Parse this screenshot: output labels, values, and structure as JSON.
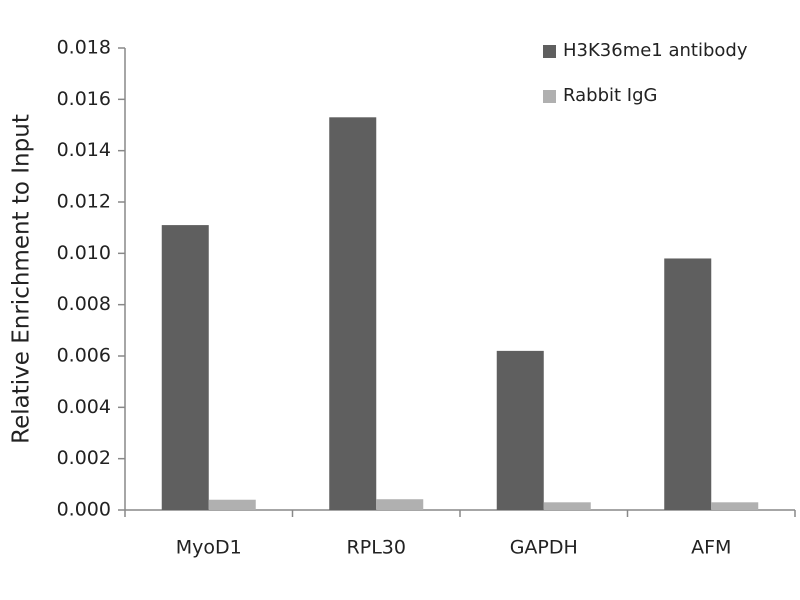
{
  "chart_data": {
    "type": "bar",
    "y_label": "Relative Enrichment to Input",
    "categories": [
      "MyoD1",
      "RPL30",
      "GAPDH",
      "AFM"
    ],
    "series": [
      {
        "name": "H3K36me1 antibody",
        "color": "#5f5f5f",
        "values": [
          0.0111,
          0.0153,
          0.0062,
          0.0098
        ]
      },
      {
        "name": "Rabbit IgG",
        "color": "#b0b0b0",
        "values": [
          0.0004,
          0.00042,
          0.0003,
          0.0003
        ]
      }
    ],
    "ylim": [
      0,
      0.018
    ],
    "yticks": [
      {
        "value": 0,
        "label": "0.000"
      },
      {
        "value": 0.002,
        "label": "0.002"
      },
      {
        "value": 0.004,
        "label": "0.004"
      },
      {
        "value": 0.006,
        "label": "0.006"
      },
      {
        "value": 0.008,
        "label": "0.008"
      },
      {
        "value": 0.01,
        "label": "0.010"
      },
      {
        "value": 0.012,
        "label": "0.012"
      },
      {
        "value": 0.014,
        "label": "0.014"
      },
      {
        "value": 0.016,
        "label": "0.016"
      },
      {
        "value": 0.018,
        "label": "0.018"
      }
    ],
    "grid": false,
    "legend": "top-right"
  }
}
